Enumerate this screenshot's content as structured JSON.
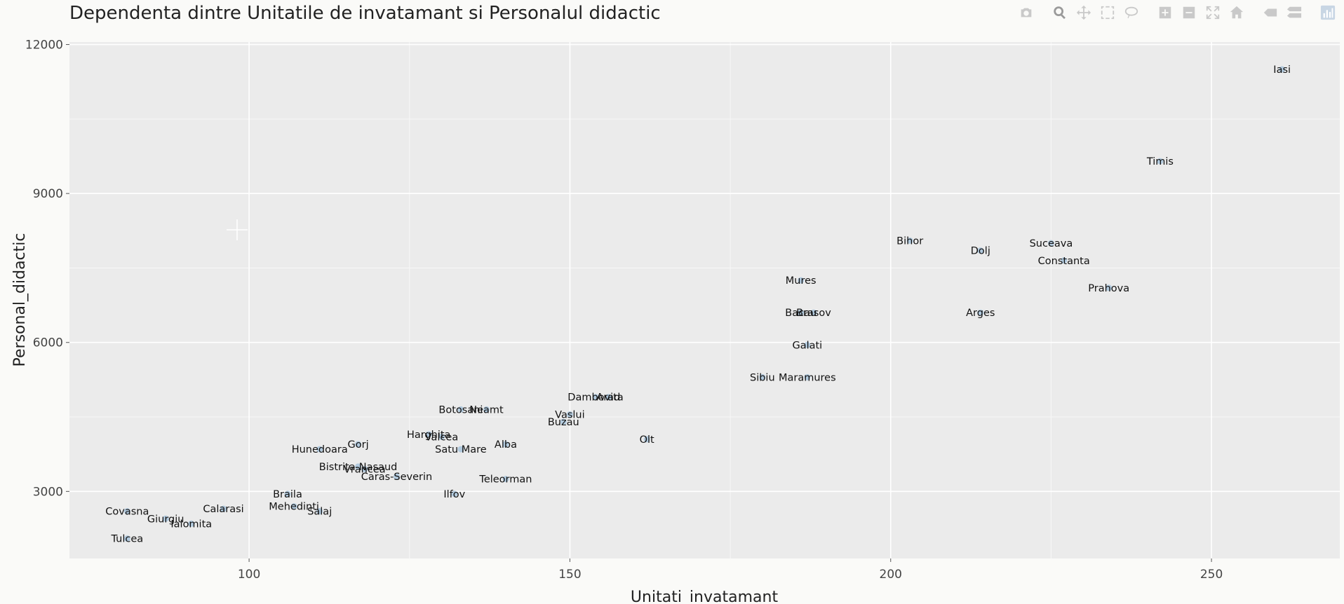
{
  "chart_data": {
    "type": "scatter",
    "title": "Dependenta dintre Unitatile de invatamant si Personalul didactic",
    "xlabel": "Unitati_invatamant",
    "ylabel": "Personal_didactic",
    "xlim": [
      72,
      270
    ],
    "ylim": [
      1650,
      12050
    ],
    "xticks": [
      100,
      150,
      200,
      250
    ],
    "yticks": [
      3000,
      6000,
      9000,
      12000
    ],
    "grid": true,
    "marker_color": "#a8c4dc",
    "points": [
      {
        "label": "Iasi",
        "x": 261,
        "y": 11500
      },
      {
        "label": "Timis",
        "x": 242,
        "y": 9650
      },
      {
        "label": "Bihor",
        "x": 203,
        "y": 8050
      },
      {
        "label": "Dolj",
        "x": 214,
        "y": 7850
      },
      {
        "label": "Suceava",
        "x": 225,
        "y": 8000
      },
      {
        "label": "Constanta",
        "x": 227,
        "y": 7650
      },
      {
        "label": "Prahova",
        "x": 234,
        "y": 7100
      },
      {
        "label": "Mures",
        "x": 186,
        "y": 7250
      },
      {
        "label": "Arges",
        "x": 214,
        "y": 6600
      },
      {
        "label": "Bacau",
        "x": 186,
        "y": 6600
      },
      {
        "label": "Brasov",
        "x": 188,
        "y": 6600
      },
      {
        "label": "Galati",
        "x": 187,
        "y": 5950
      },
      {
        "label": "Sibiu",
        "x": 180,
        "y": 5300
      },
      {
        "label": "Maramures",
        "x": 187,
        "y": 5300
      },
      {
        "label": "Dambovita",
        "x": 154,
        "y": 4900
      },
      {
        "label": "Arad",
        "x": 156,
        "y": 4900
      },
      {
        "label": "Olt",
        "x": 162,
        "y": 4050
      },
      {
        "label": "Botosani",
        "x": 133,
        "y": 4650
      },
      {
        "label": "Neamt",
        "x": 137,
        "y": 4650
      },
      {
        "label": "Vaslui",
        "x": 150,
        "y": 4550
      },
      {
        "label": "Buzau",
        "x": 149,
        "y": 4400
      },
      {
        "label": "Harghita",
        "x": 128,
        "y": 4150
      },
      {
        "label": "Valcea",
        "x": 130,
        "y": 4100
      },
      {
        "label": "Alba",
        "x": 140,
        "y": 3950
      },
      {
        "label": "Satu Mare",
        "x": 133,
        "y": 3850
      },
      {
        "label": "Gorj",
        "x": 117,
        "y": 3950
      },
      {
        "label": "Hunedoara",
        "x": 111,
        "y": 3850
      },
      {
        "label": "Bistrita-Nasaud",
        "x": 117,
        "y": 3500
      },
      {
        "label": "Vrancea",
        "x": 118,
        "y": 3450
      },
      {
        "label": "Caras-Severin",
        "x": 123,
        "y": 3300
      },
      {
        "label": "Teleorman",
        "x": 140,
        "y": 3250
      },
      {
        "label": "Ilfov",
        "x": 132,
        "y": 2950
      },
      {
        "label": "Braila",
        "x": 106,
        "y": 2950
      },
      {
        "label": "Mehedinti",
        "x": 107,
        "y": 2700
      },
      {
        "label": "Salaj",
        "x": 111,
        "y": 2600
      },
      {
        "label": "Calarasi",
        "x": 96,
        "y": 2650
      },
      {
        "label": "Covasna",
        "x": 81,
        "y": 2600
      },
      {
        "label": "Giurgiu",
        "x": 87,
        "y": 2450
      },
      {
        "label": "Ialomita",
        "x": 91,
        "y": 2350
      },
      {
        "label": "Tulcea",
        "x": 81,
        "y": 2050
      }
    ]
  },
  "modebar": {
    "buttons": [
      {
        "name": "camera-icon",
        "title": "Download plot as a png"
      },
      {
        "name": "zoom-icon",
        "title": "Zoom"
      },
      {
        "name": "pan-icon",
        "title": "Pan"
      },
      {
        "name": "box-select-icon",
        "title": "Box Select"
      },
      {
        "name": "lasso-select-icon",
        "title": "Lasso Select"
      },
      {
        "name": "zoom-in-icon",
        "title": "Zoom in"
      },
      {
        "name": "zoom-out-icon",
        "title": "Zoom out"
      },
      {
        "name": "autoscale-icon",
        "title": "Autoscale"
      },
      {
        "name": "home-icon",
        "title": "Reset axes"
      },
      {
        "name": "hover-closest-icon",
        "title": "Show closest data on hover"
      },
      {
        "name": "hover-compare-icon",
        "title": "Compare data on hover"
      },
      {
        "name": "plotly-logo-icon",
        "title": "Produced with Plotly"
      }
    ]
  }
}
